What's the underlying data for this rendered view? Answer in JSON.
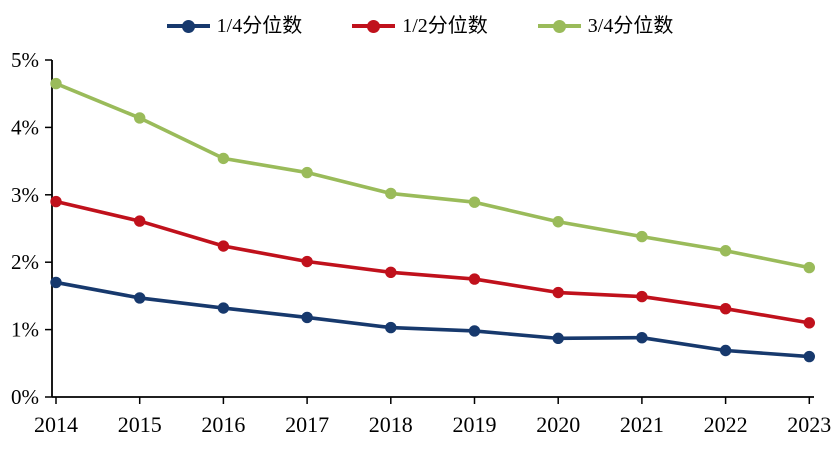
{
  "chart_data": {
    "type": "line",
    "x": [
      "2014",
      "2015",
      "2016",
      "2017",
      "2018",
      "2019",
      "2020",
      "2021",
      "2022",
      "2023"
    ],
    "series": [
      {
        "name": "1/4分位数",
        "color": "#17396D",
        "marker": "circle",
        "values": [
          1.7,
          1.47,
          1.32,
          1.18,
          1.03,
          0.98,
          0.87,
          0.88,
          0.69,
          0.6
        ]
      },
      {
        "name": "1/2分位数",
        "color": "#C0111C",
        "marker": "circle",
        "values": [
          2.9,
          2.61,
          2.24,
          2.01,
          1.85,
          1.75,
          1.55,
          1.49,
          1.31,
          1.1
        ]
      },
      {
        "name": "3/4分位数",
        "color": "#9ABB5A",
        "marker": "circle",
        "values": [
          4.65,
          4.14,
          3.54,
          3.33,
          3.02,
          2.89,
          2.6,
          2.38,
          2.17,
          1.92
        ]
      }
    ],
    "title": "",
    "xlabel": "",
    "ylabel": "",
    "ylim": [
      0,
      5
    ],
    "y_tick_labels": [
      "0%",
      "1%",
      "2%",
      "3%",
      "4%",
      "5%"
    ],
    "grid": false,
    "legend_position": "top",
    "axis_color": "#000000",
    "background": "#FFFFFF"
  }
}
